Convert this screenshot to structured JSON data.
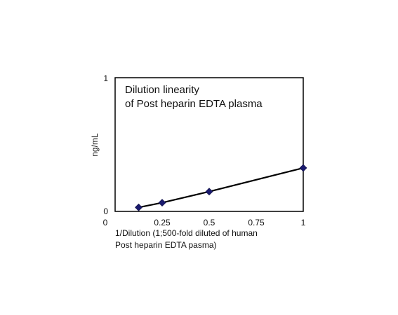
{
  "chart_data": {
    "type": "line",
    "title_lines": [
      "Dilution linearity",
      "of  Post heparin EDTA plasma"
    ],
    "xlabel_lines": [
      "1/Dilution (1;500-fold diluted of  human",
      "Post heparin EDTA pasma)"
    ],
    "ylabel": "ng/mL",
    "xlim": [
      0,
      1
    ],
    "ylim": [
      0,
      1
    ],
    "x_ticks": [
      "0",
      "0.25",
      "0.5",
      "0.75",
      "1"
    ],
    "y_ticks": [
      "0",
      "1"
    ],
    "grid": false,
    "series": [
      {
        "x": [
          0.125,
          0.25,
          0.5,
          1.0
        ],
        "y": [
          0.03,
          0.065,
          0.148,
          0.325
        ],
        "line_color": "#000000",
        "marker_color": "#1a1a6e",
        "marker": "diamond"
      }
    ]
  }
}
